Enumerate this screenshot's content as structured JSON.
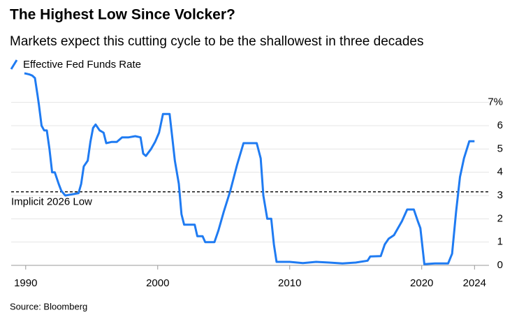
{
  "chart_data": {
    "type": "line",
    "title": "The Highest Low Since Volcker?",
    "subtitle": "Markets expect this cutting cycle to be the shallowest in three decades",
    "source": "Source: Bloomberg",
    "series": [
      {
        "name": "Effective Fed Funds Rate",
        "color": "#1f7bf2",
        "x": [
          1989.9,
          1990.0,
          1990.3,
          1990.5,
          1990.7,
          1990.9,
          1991.0,
          1991.2,
          1991.4,
          1991.6,
          1991.8,
          1992.0,
          1992.2,
          1992.5,
          1992.7,
          1993.0,
          1993.5,
          1994.0,
          1994.2,
          1994.4,
          1994.7,
          1994.9,
          1995.1,
          1995.3,
          1995.6,
          1995.9,
          1996.1,
          1996.5,
          1996.9,
          1997.3,
          1997.8,
          1998.3,
          1998.7,
          1998.9,
          1999.1,
          1999.5,
          1999.8,
          2000.1,
          2000.4,
          2000.9,
          2001.1,
          2001.3,
          2001.6,
          2001.8,
          2002.0,
          2002.8,
          2003.0,
          2003.4,
          2003.6,
          2004.3,
          2004.6,
          2005.0,
          2005.5,
          2006.0,
          2006.5,
          2007.5,
          2007.8,
          2008.0,
          2008.3,
          2008.6,
          2008.8,
          2009.0,
          2010.0,
          2011.0,
          2012.0,
          2013.0,
          2014.0,
          2015.0,
          2015.9,
          2016.1,
          2016.9,
          2017.2,
          2017.5,
          2017.9,
          2018.2,
          2018.5,
          2018.9,
          2019.4,
          2019.7,
          2019.9,
          2020.2,
          2021.0,
          2022.0,
          2022.3,
          2022.6,
          2022.9,
          2023.2,
          2023.6,
          2024.0
        ],
        "values": [
          8.25,
          8.24,
          8.2,
          8.15,
          8.05,
          7.3,
          6.9,
          6.0,
          5.8,
          5.8,
          5.0,
          4.0,
          4.0,
          3.5,
          3.2,
          3.0,
          3.05,
          3.1,
          3.5,
          4.25,
          4.5,
          5.3,
          5.9,
          6.05,
          5.8,
          5.7,
          5.25,
          5.3,
          5.3,
          5.5,
          5.5,
          5.55,
          5.5,
          4.8,
          4.7,
          5.0,
          5.3,
          5.7,
          6.5,
          6.5,
          5.5,
          4.5,
          3.5,
          2.2,
          1.75,
          1.75,
          1.25,
          1.25,
          1.0,
          1.0,
          1.5,
          2.3,
          3.2,
          4.3,
          5.25,
          5.25,
          4.6,
          3.0,
          2.0,
          2.0,
          0.9,
          0.15,
          0.15,
          0.1,
          0.15,
          0.12,
          0.08,
          0.12,
          0.2,
          0.38,
          0.4,
          0.9,
          1.15,
          1.3,
          1.6,
          1.9,
          2.4,
          2.4,
          1.9,
          1.6,
          0.05,
          0.08,
          0.08,
          0.5,
          2.3,
          3.8,
          4.6,
          5.33,
          5.33
        ]
      }
    ],
    "reference_line": {
      "value": 3.16,
      "label": "Implicit 2026 Low"
    },
    "xlim": [
      1988.9,
      2025.2
    ],
    "xticks": [
      1990,
      2000,
      2010,
      2020,
      2024
    ],
    "ylim": [
      0,
      8.4
    ],
    "yticks": [
      0,
      1,
      2,
      3,
      4,
      5,
      6,
      {
        "value": 7,
        "label": "7%"
      }
    ],
    "grid": true
  }
}
